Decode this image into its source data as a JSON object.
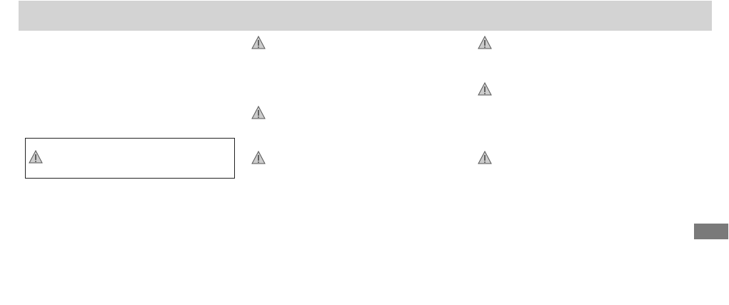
{
  "page": {
    "header_color": "#d3d3d3",
    "tab_color": "#7a7a7a"
  },
  "icons": {
    "warning": "warning-triangle-icon"
  }
}
